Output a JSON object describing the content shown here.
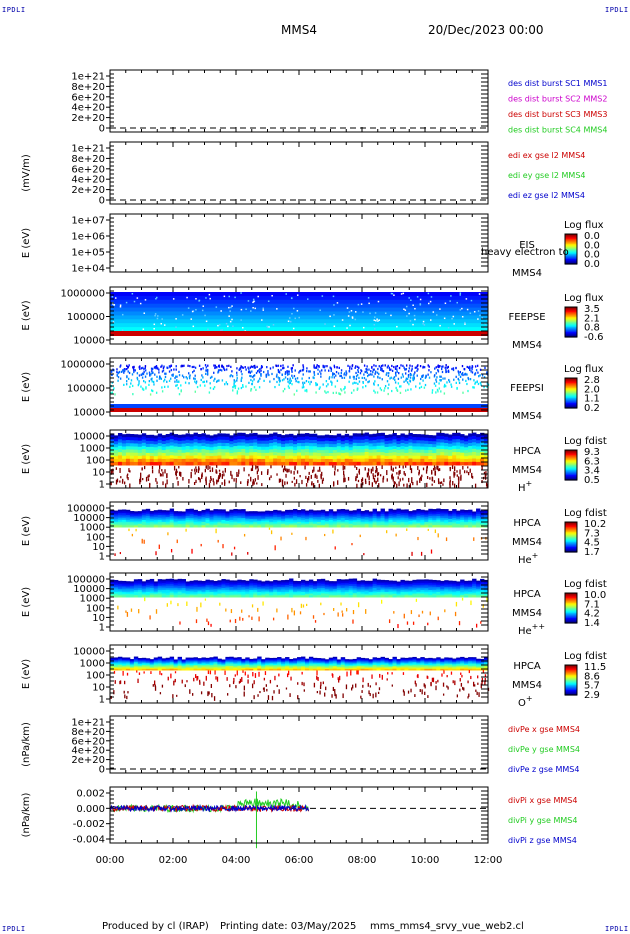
{
  "corner_text": "IPDLI",
  "header": {
    "spacecraft": "MMS4",
    "datetime": "20/Dec/2023 00:00"
  },
  "footer": {
    "produced_by": "Produced by cl (IRAP)",
    "printing_date": "Printing date: 03/May/2025",
    "script_name": "mms_mms4_srvy_vue_web2.cl"
  },
  "time_axis": {
    "ticks": [
      "00:00",
      "02:00",
      "04:00",
      "06:00",
      "08:00",
      "10:00",
      "12:00"
    ],
    "range_hours": [
      0,
      12
    ]
  },
  "colors": {
    "red": "#cc0000",
    "green": "#22cc22",
    "blue": "#0000cc",
    "magenta": "#cc00cc",
    "navy": "#000088"
  },
  "chart_data": [
    {
      "id": "p1",
      "type": "line",
      "ylabel": "",
      "yticks": [
        "1e+21",
        "8e+20",
        "6e+20",
        "4e+20",
        "2e+20",
        "0"
      ],
      "legend": [
        {
          "text": "des dist burst SC1 MMS1",
          "color": "#0000cc"
        },
        {
          "text": "des dist burst SC2 MMS2",
          "color": "#cc00cc"
        },
        {
          "text": "des dist burst SC3 MMS3",
          "color": "#cc0000"
        },
        {
          "text": "des dist burst SC4 MMS4",
          "color": "#22cc22"
        }
      ],
      "data": "none"
    },
    {
      "id": "p2",
      "type": "line",
      "ylabel": "(mV/m)",
      "yticks": [
        "1e+21",
        "8e+20",
        "6e+20",
        "4e+20",
        "2e+20",
        "0"
      ],
      "legend": [
        {
          "text": "edi ex gse l2 MMS4",
          "color": "#cc0000"
        },
        {
          "text": "edi ey gse l2 MMS4",
          "color": "#22cc22"
        },
        {
          "text": "edi ez gse l2 MMS4",
          "color": "#0000cc"
        }
      ],
      "data": "none"
    },
    {
      "id": "p3",
      "type": "heatmap",
      "ylabel": "E (eV)",
      "yticks": [
        "1e+07",
        "1e+06",
        "1e+05",
        "1e+04"
      ],
      "instrument": "EIS",
      "extra_label": "heavy electron to",
      "spacecraft": "MMS4",
      "colorbar": {
        "title": "Log flux",
        "ticks": [
          "0.0",
          "0.0",
          "0.0",
          "0.0"
        ]
      },
      "data": "none"
    },
    {
      "id": "p4",
      "type": "heatmap",
      "ylabel": "E (eV)",
      "yticks": [
        "1000000",
        "100000",
        "10000"
      ],
      "instrument": "FEEPSE",
      "spacecraft": "MMS4",
      "colorbar": {
        "title": "Log flux",
        "ticks": [
          "3.5",
          "2.1",
          "0.8",
          "-0.6"
        ]
      },
      "data_window_hours": [
        0,
        12
      ]
    },
    {
      "id": "p5",
      "type": "heatmap",
      "ylabel": "E (eV)",
      "yticks": [
        "1000000",
        "100000",
        "10000"
      ],
      "instrument": "FEEPSI",
      "spacecraft": "MMS4",
      "colorbar": {
        "title": "Log flux",
        "ticks": [
          "2.8",
          "2.0",
          "1.1",
          "0.2"
        ]
      },
      "data_window_hours": [
        0,
        12
      ]
    },
    {
      "id": "p6",
      "type": "heatmap",
      "ylabel": "E (eV)",
      "yticks": [
        "10000",
        "1000",
        "100",
        "10",
        "1"
      ],
      "instrument": "HPCA",
      "spacecraft": "MMS4",
      "species": "H",
      "charge": "+",
      "colorbar": {
        "title": "Log fdist",
        "ticks": [
          "9.3",
          "6.3",
          "3.4",
          "0.5"
        ]
      },
      "data_window_hours": [
        0,
        12
      ]
    },
    {
      "id": "p7",
      "type": "heatmap",
      "ylabel": "E (eV)",
      "yticks": [
        "100000",
        "10000",
        "1000",
        "100",
        "10",
        "1"
      ],
      "instrument": "HPCA",
      "spacecraft": "MMS4",
      "species": "He",
      "charge": "+",
      "colorbar": {
        "title": "Log fdist",
        "ticks": [
          "10.2",
          "7.3",
          "4.5",
          "1.7"
        ]
      },
      "data_window_hours": [
        0,
        12
      ]
    },
    {
      "id": "p8",
      "type": "heatmap",
      "ylabel": "E (eV)",
      "yticks": [
        "100000",
        "10000",
        "1000",
        "100",
        "10",
        "1"
      ],
      "instrument": "HPCA",
      "spacecraft": "MMS4",
      "species": "He",
      "charge": "++",
      "colorbar": {
        "title": "Log fdist",
        "ticks": [
          "10.0",
          "7.1",
          "4.2",
          "1.4"
        ]
      },
      "data_window_hours": [
        0,
        12
      ]
    },
    {
      "id": "p9",
      "type": "heatmap",
      "ylabel": "E (eV)",
      "yticks": [
        "10000",
        "1000",
        "100",
        "10",
        "1"
      ],
      "instrument": "HPCA",
      "spacecraft": "MMS4",
      "species": "O",
      "charge": "+",
      "colorbar": {
        "title": "Log fdist",
        "ticks": [
          "11.5",
          "8.6",
          "5.7",
          "2.9"
        ]
      },
      "data_window_hours": [
        0,
        12
      ]
    },
    {
      "id": "p10",
      "type": "line",
      "ylabel": "(nPa/km)",
      "yticks": [
        "1e+21",
        "8e+20",
        "6e+20",
        "4e+20",
        "2e+20",
        "0"
      ],
      "legend": [
        {
          "text": "divPe x gse MMS4",
          "color": "#cc0000"
        },
        {
          "text": "divPe y gse MMS4",
          "color": "#22cc22"
        },
        {
          "text": "divPe z gse MMS4",
          "color": "#0000cc"
        }
      ],
      "data": "none"
    },
    {
      "id": "p11",
      "type": "line",
      "ylabel": "(nPa/km)",
      "yticks": [
        "0.002",
        "0.000",
        "-0.002",
        "-0.004"
      ],
      "ylim": [
        -0.0055,
        0.003
      ],
      "legend": [
        {
          "text": "divPi x gse MMS4",
          "color": "#cc0000"
        },
        {
          "text": "divPi y gse MMS4",
          "color": "#22cc22"
        },
        {
          "text": "divPi z gse MMS4",
          "color": "#0000cc"
        }
      ],
      "data_window_hours": [
        0,
        6.3
      ],
      "spike": {
        "t_hours": 4.65,
        "min": -0.0052,
        "max": 0.0022
      }
    }
  ]
}
